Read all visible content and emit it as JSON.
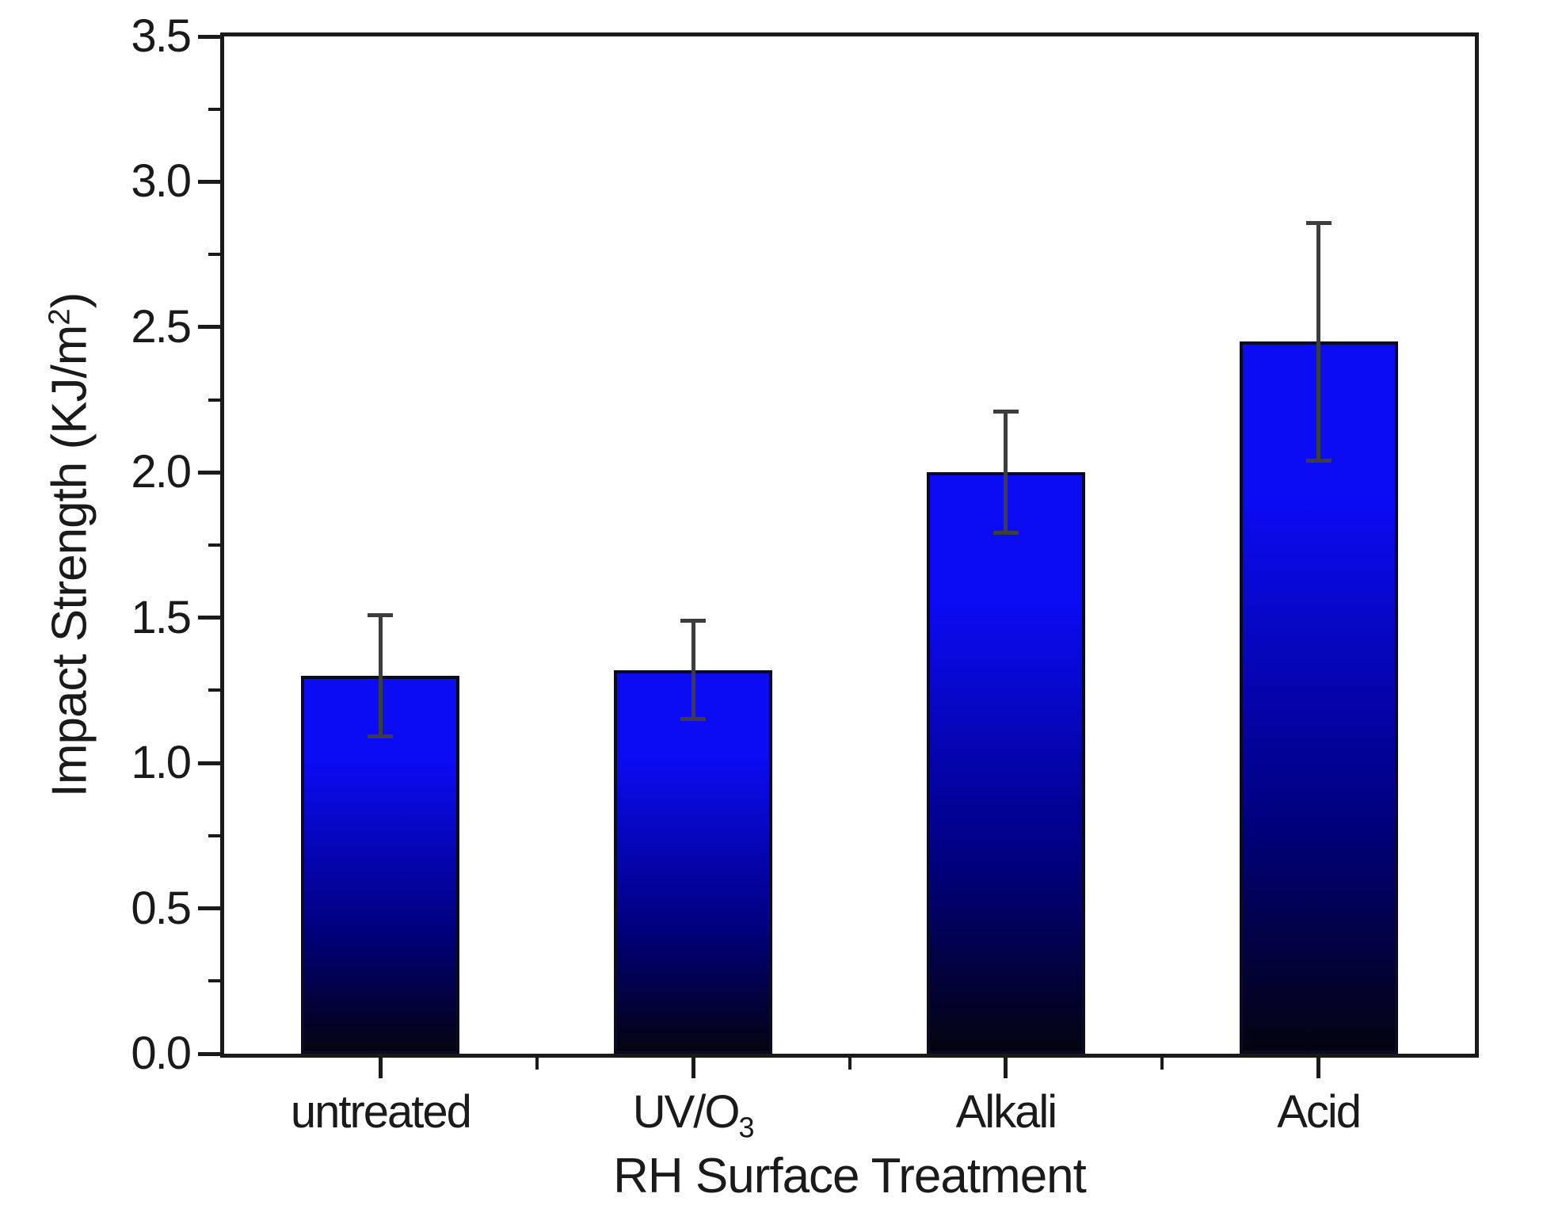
{
  "chart_data": {
    "type": "bar",
    "title": "",
    "xlabel": "RH Surface Treatment",
    "ylabel": "Impact Strength (KJ/m²)",
    "ylabel_parts": {
      "pre": "Impact Strength (KJ/m",
      "sup": "2",
      "post": ")"
    },
    "categories": [
      "untreated",
      "UV/O3",
      "Alkali",
      "Acid"
    ],
    "x_tick_labels": [
      {
        "main": "untreated"
      },
      {
        "main": "UV/O",
        "sub": "3"
      },
      {
        "main": "Alkali"
      },
      {
        "main": "Acid"
      }
    ],
    "values": [
      1.3,
      1.32,
      2.0,
      2.45
    ],
    "errors": [
      0.21,
      0.17,
      0.21,
      0.41
    ],
    "error_upper": [
      1.51,
      1.49,
      2.21,
      2.86
    ],
    "error_lower": [
      1.09,
      1.15,
      1.79,
      2.04
    ],
    "ylim": [
      0.0,
      3.5
    ],
    "y_major_step": 0.5,
    "y_minor_step": 0.25,
    "y_tick_labels": [
      "0.0",
      "0.5",
      "1.0",
      "1.5",
      "2.0",
      "2.5",
      "3.0",
      "3.5"
    ],
    "grid": false,
    "legend": false,
    "colors": {
      "bar_gradient_top": "#0b0bf4",
      "bar_gradient_mid": "#00007d",
      "bar_gradient_bottom": "#03030f",
      "bar_border": "#0a0a20",
      "error_bar": "#3d3d3d",
      "axis": "#1a1a1a",
      "text": "#1a1a1a",
      "background": "#ffffff"
    }
  }
}
